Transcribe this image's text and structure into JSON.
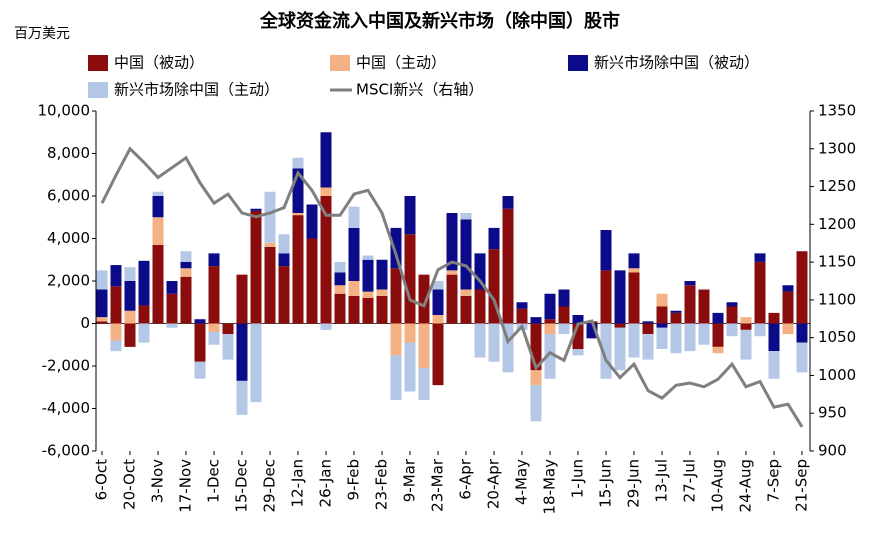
{
  "chart_data": {
    "type": "bar-line",
    "title": "全球资金流入中国及新兴市场（除中国）股市",
    "y_label": "百万美元",
    "categories": [
      "6-Oct",
      null,
      "20-Oct",
      null,
      "3-Nov",
      null,
      "17-Nov",
      null,
      "1-Dec",
      null,
      "15-Dec",
      null,
      "29-Dec",
      null,
      "12-Jan",
      null,
      "26-Jan",
      null,
      "9-Feb",
      null,
      "23-Feb",
      null,
      "9-Mar",
      null,
      "23-Mar",
      null,
      "6-Apr",
      null,
      "20-Apr",
      null,
      "4-May",
      null,
      "18-May",
      null,
      "1-Jun",
      null,
      "15-Jun",
      null,
      "29-Jun",
      null,
      "13-Jul",
      null,
      "27-Jul",
      null,
      "10-Aug",
      null,
      "24-Aug",
      null,
      "7-Sep",
      null,
      "21-Sep"
    ],
    "series": [
      {
        "name": "中国（被动）",
        "color": "#8b0c0c",
        "values": [
          100,
          1750,
          -1100,
          850,
          3700,
          1400,
          2200,
          -1800,
          2700,
          -500,
          2300,
          5300,
          3600,
          2700,
          5100,
          4000,
          6000,
          1400,
          1300,
          1200,
          1300,
          2600,
          4200,
          2300,
          -2900,
          2300,
          1300,
          1600,
          3500,
          5400,
          700,
          -2200,
          200,
          800,
          -1200,
          100,
          2500,
          -200,
          2400,
          -500,
          800,
          500,
          1800,
          1600,
          -1100,
          800,
          -300,
          2900,
          500,
          1500,
          3400
        ]
      },
      {
        "name": "中国（主动）",
        "color": "#f4b183",
        "values": [
          200,
          -800,
          600,
          0,
          1300,
          0,
          400,
          0,
          -400,
          0,
          0,
          0,
          200,
          0,
          100,
          0,
          400,
          400,
          700,
          300,
          300,
          -1500,
          -900,
          -2100,
          400,
          200,
          300,
          0,
          0,
          0,
          0,
          -700,
          -500,
          0,
          0,
          0,
          0,
          0,
          200,
          0,
          600,
          0,
          0,
          0,
          -300,
          0,
          300,
          0,
          0,
          -500,
          0
        ]
      },
      {
        "name": "新兴市场除中国（被动）",
        "color": "#0b0b8a",
        "values": [
          1300,
          1000,
          1400,
          2100,
          1000,
          600,
          300,
          200,
          600,
          0,
          -2700,
          100,
          0,
          600,
          2100,
          1600,
          2600,
          600,
          2500,
          1500,
          1400,
          1900,
          1800,
          0,
          1200,
          2700,
          3300,
          1700,
          1000,
          600,
          300,
          300,
          1200,
          800,
          400,
          -700,
          1900,
          2500,
          700,
          100,
          -200,
          100,
          200,
          0,
          500,
          200,
          0,
          400,
          -1300,
          300,
          -900
        ]
      },
      {
        "name": "新兴市场除中国（主动）",
        "color": "#b4c7e7",
        "values": [
          900,
          -500,
          650,
          -900,
          200,
          -200,
          500,
          -800,
          -600,
          -1200,
          -1600,
          -3700,
          2400,
          900,
          500,
          0,
          -300,
          500,
          1000,
          200,
          0,
          -2100,
          -2300,
          -1500,
          400,
          0,
          300,
          -1600,
          -1800,
          -2300,
          -300,
          -1700,
          -2100,
          -500,
          -300,
          0,
          -2600,
          -2000,
          -1600,
          -1200,
          -1000,
          -1400,
          -1300,
          -1000,
          0,
          -600,
          -1400,
          -600,
          -1300,
          0,
          -1400
        ]
      },
      {
        "name": "MSCI新兴（右轴）",
        "color": "#7f7f7f",
        "type": "line",
        "axis": "y2",
        "values": [
          1228,
          1265,
          1300,
          1282,
          1262,
          1275,
          1288,
          1255,
          1228,
          1240,
          1215,
          1210,
          1215,
          1222,
          1268,
          1245,
          1212,
          1212,
          1240,
          1245,
          1215,
          1160,
          1100,
          1092,
          1140,
          1150,
          1145,
          1125,
          1100,
          1045,
          1065,
          1010,
          1030,
          1020,
          1068,
          1072,
          1020,
          997,
          1015,
          980,
          970,
          987,
          990,
          985,
          995,
          1015,
          985,
          992,
          958,
          962,
          932
        ]
      }
    ],
    "ylim": [
      -6000,
      10000
    ],
    "yticks": [
      {
        "value": -6000,
        "label": "-6,000"
      },
      {
        "value": -4000,
        "label": "-4,000"
      },
      {
        "value": -2000,
        "label": "-2,000"
      },
      0,
      {
        "value": 2000,
        "label": "2,000"
      },
      {
        "value": 4000,
        "label": "4,000"
      },
      {
        "value": 6000,
        "label": "6,000"
      },
      {
        "value": 8000,
        "label": "8,000"
      },
      {
        "value": 10000,
        "label": "10,000"
      }
    ],
    "y2lim": [
      900,
      1350
    ],
    "y2ticks": [
      900,
      950,
      1000,
      1050,
      1100,
      1150,
      1200,
      1250,
      1300,
      1350
    ],
    "legend": "top"
  }
}
